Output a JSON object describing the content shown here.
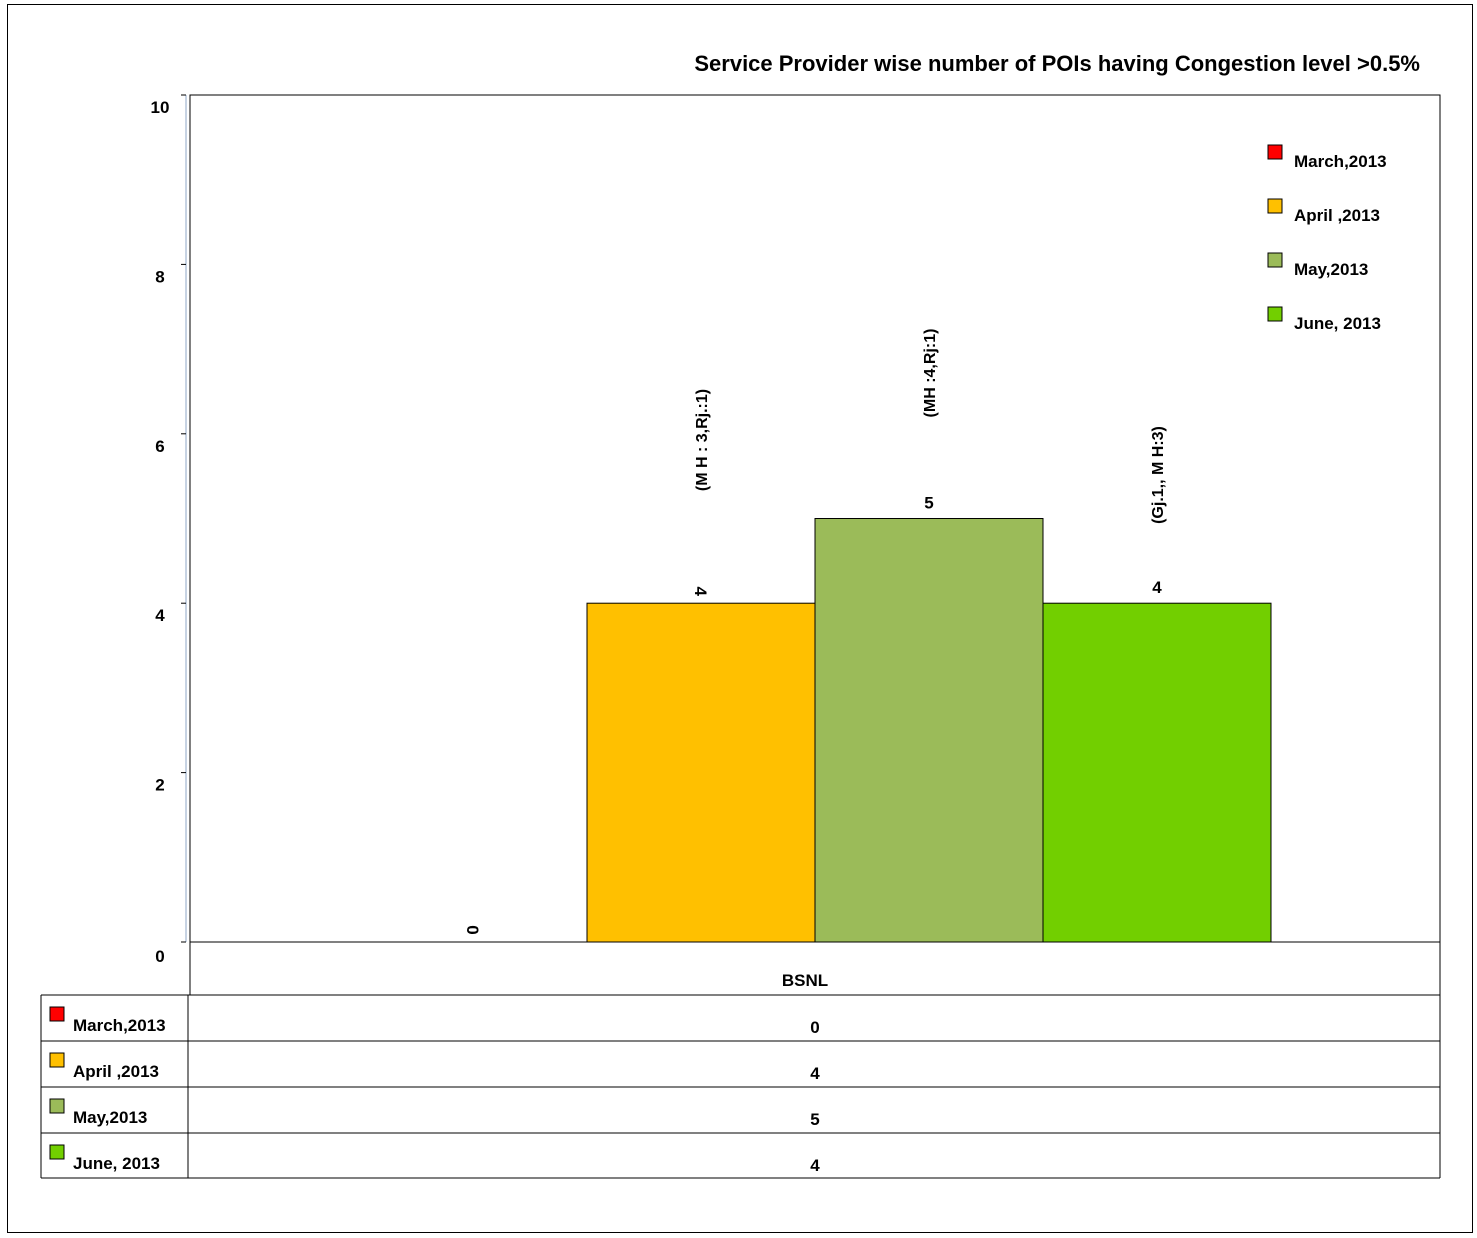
{
  "chart_data": {
    "type": "bar",
    "title": "Service Provider wise number of POIs having Congestion level  >0.5%",
    "categories": [
      "BSNL"
    ],
    "ylim": [
      0,
      10
    ],
    "yticks": [
      0,
      2,
      4,
      6,
      8,
      10
    ],
    "grid": false,
    "legend_position": "top-right",
    "series": [
      {
        "name": "March,2013",
        "values": [
          0
        ],
        "color": "#FF0000",
        "annotation": ""
      },
      {
        "name": "April ,2013",
        "values": [
          4
        ],
        "color": "#FFC000",
        "annotation": "(M H : 3,Rj.:1)"
      },
      {
        "name": "May,2013",
        "values": [
          5
        ],
        "color": "#9BBB59",
        "annotation": "(MH :4,Rj:1)"
      },
      {
        "name": "June, 2013",
        "values": [
          4
        ],
        "color": "#72CF00",
        "annotation": "(Gj.1,, M H:3)"
      }
    ],
    "data_table": true
  }
}
